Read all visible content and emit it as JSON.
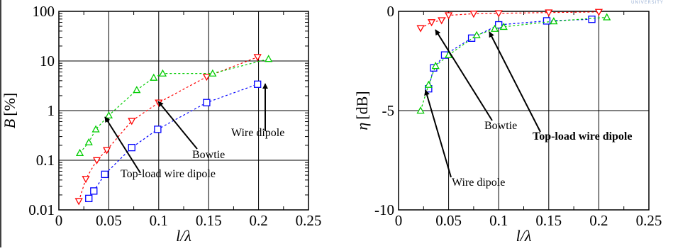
{
  "chart_data": [
    {
      "type": "line",
      "xlabel": "l/λ",
      "ylabel_var": "B",
      "ylabel_unit": "[%]",
      "xlim": [
        0,
        0.25
      ],
      "ylim": [
        0.01,
        100
      ],
      "yscale": "log",
      "grid": true,
      "xticks": [
        {
          "v": 0,
          "label": "0"
        },
        {
          "v": 0.05,
          "label": "0.05"
        },
        {
          "v": 0.1,
          "label": "0.1"
        },
        {
          "v": 0.15,
          "label": "0.15"
        },
        {
          "v": 0.2,
          "label": "0.2"
        },
        {
          "v": 0.25,
          "label": "0.25"
        }
      ],
      "yticks": [
        {
          "v": 0.01,
          "label": "0.01"
        },
        {
          "v": 0.1,
          "label": "0.1"
        },
        {
          "v": 1,
          "label": "1"
        },
        {
          "v": 10,
          "label": "10"
        },
        {
          "v": 100,
          "label": "100"
        }
      ],
      "series": [
        {
          "name": "Bowtie",
          "color": "#ff0000",
          "marker": "triangle-down",
          "x": [
            0.02,
            0.027,
            0.038,
            0.048,
            0.073,
            0.1,
            0.148,
            0.199
          ],
          "y": [
            0.015,
            0.042,
            0.1,
            0.16,
            0.62,
            1.45,
            4.8,
            12
          ]
        },
        {
          "name": "Wire dipole",
          "color": "#0000ff",
          "marker": "square",
          "x": [
            0.03,
            0.035,
            0.046,
            0.073,
            0.099,
            0.148,
            0.199
          ],
          "y": [
            0.017,
            0.024,
            0.052,
            0.18,
            0.42,
            1.45,
            3.4
          ]
        },
        {
          "name": "Top-load wire dipole",
          "color": "#00cc00",
          "marker": "triangle-up",
          "x": [
            0.021,
            0.03,
            0.037,
            0.05,
            0.078,
            0.095,
            0.104,
            0.154,
            0.21
          ],
          "y": [
            0.14,
            0.23,
            0.42,
            0.8,
            2.6,
            4.6,
            5.6,
            5.6,
            11
          ]
        }
      ],
      "annotations": [
        {
          "text": "Wire dipole",
          "tx": 0.2,
          "ty": 1.5,
          "bold": false
        },
        {
          "text": "Bowtie",
          "tx": 0.128,
          "ty": 0.12,
          "bold": false
        },
        {
          "text": "Top-load wire dipole",
          "tx": 0.113,
          "ty": 0.028,
          "bold": false
        }
      ]
    },
    {
      "type": "line",
      "xlabel": "l/λ",
      "ylabel_var": "η",
      "ylabel_unit": "[dB]",
      "xlim": [
        0,
        0.25
      ],
      "ylim": [
        -10,
        0
      ],
      "yscale": "linear",
      "grid": true,
      "xticks": [
        {
          "v": 0,
          "label": "0"
        },
        {
          "v": 0.05,
          "label": "0.05"
        },
        {
          "v": 0.1,
          "label": "0.1"
        },
        {
          "v": 0.15,
          "label": "0.15"
        },
        {
          "v": 0.2,
          "label": "0.2"
        },
        {
          "v": 0.25,
          "label": "0.25"
        }
      ],
      "yticks": [
        {
          "v": -10,
          "label": "-10"
        },
        {
          "v": -5,
          "label": "-5"
        },
        {
          "v": 0,
          "label": "0"
        }
      ],
      "series": [
        {
          "name": "Bowtie",
          "color": "#ff0000",
          "marker": "triangle-down",
          "x": [
            0.022,
            0.033,
            0.043,
            0.05,
            0.075,
            0.1,
            0.15,
            0.2
          ],
          "y": [
            -0.85,
            -0.55,
            -0.45,
            -0.2,
            -0.12,
            -0.1,
            -0.06,
            -0.03
          ]
        },
        {
          "name": "Wire dipole",
          "color": "#0000ff",
          "marker": "square",
          "x": [
            0.03,
            0.035,
            0.046,
            0.073,
            0.1,
            0.148,
            0.193
          ],
          "y": [
            -3.9,
            -2.85,
            -2.2,
            -1.35,
            -0.68,
            -0.48,
            -0.4
          ]
        },
        {
          "name": "Top-load wire dipole",
          "color": "#00cc00",
          "marker": "triangle-up",
          "x": [
            0.022,
            0.03,
            0.037,
            0.05,
            0.078,
            0.096,
            0.105,
            0.155,
            0.208
          ],
          "y": [
            -5.0,
            -3.7,
            -2.75,
            -2.2,
            -1.2,
            -0.88,
            -0.78,
            -0.5,
            -0.3
          ]
        }
      ],
      "annotations": [
        {
          "text": "Bowtie",
          "tx": 0.087,
          "ty": -4.9,
          "bold": false
        },
        {
          "text": "Top-load wire dipole",
          "tx": 0.157,
          "ty": -5.5,
          "bold": true
        },
        {
          "text": "Wire dipole",
          "tx": 0.082,
          "ty": -7.75,
          "bold": false
        }
      ]
    }
  ],
  "logo": {
    "text": "UNIVERSITY",
    "color": "#9db3d6"
  }
}
